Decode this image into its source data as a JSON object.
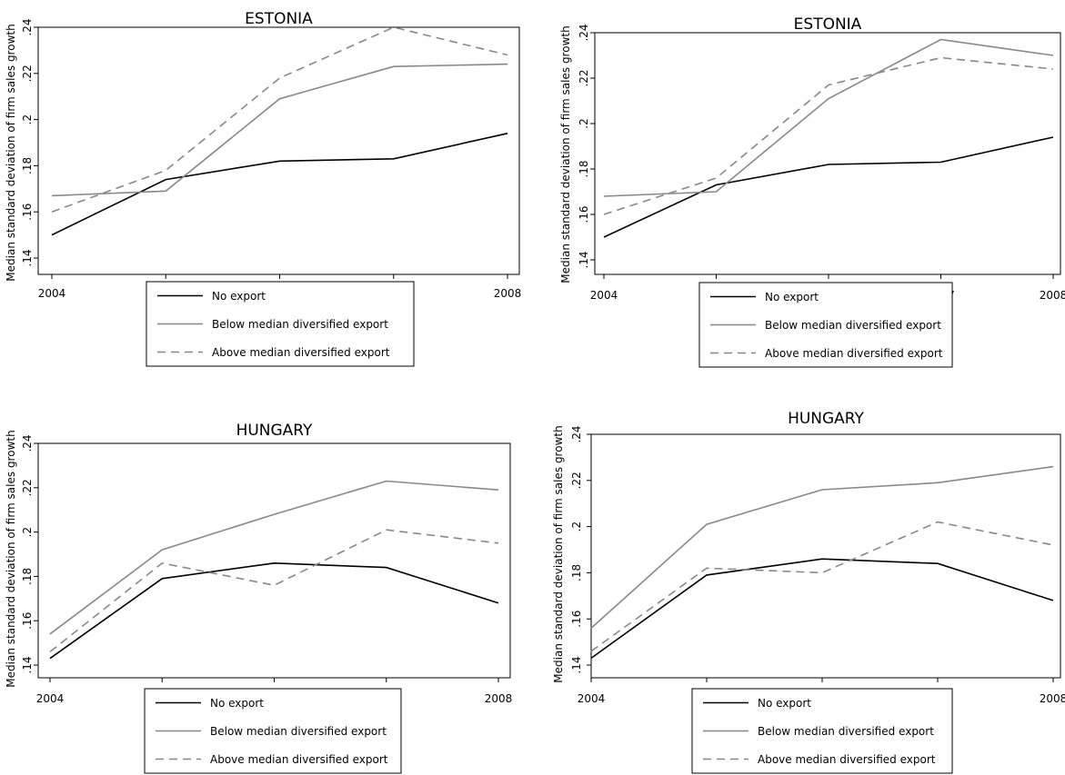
{
  "chart_data": [
    {
      "type": "line",
      "title": "ESTONIA",
      "xlabel": "",
      "ylabel": "Median standard deviation of firm sales growth",
      "x": [
        2004,
        2005,
        2006,
        2007,
        2008
      ],
      "xticks": [
        "2004",
        "2005",
        "2006",
        "2007",
        "2008"
      ],
      "yticks": [
        ".14",
        ".16",
        ".18",
        ".2",
        ".22",
        ".24"
      ],
      "ylim": [
        0.14,
        0.24
      ],
      "grid": false,
      "legend_position": "bottom",
      "series": [
        {
          "name": "No export",
          "values": [
            0.15,
            0.174,
            0.182,
            0.183,
            0.194
          ],
          "color": "#000000",
          "dash": "solid"
        },
        {
          "name": "Below median diversified export",
          "values": [
            0.167,
            0.169,
            0.209,
            0.223,
            0.224
          ],
          "color": "#888888",
          "dash": "solid"
        },
        {
          "name": "Above median diversified export",
          "values": [
            0.16,
            0.178,
            0.218,
            0.24,
            0.228
          ],
          "color": "#888888",
          "dash": "dashed"
        }
      ]
    },
    {
      "type": "line",
      "title": "ESTONIA",
      "xlabel": "",
      "ylabel": "Median standard deviation of firm sales growth",
      "x": [
        2004,
        2005,
        2006,
        2007,
        2008
      ],
      "xticks": [
        "2004",
        "2005",
        "2006",
        "2007",
        "2008"
      ],
      "yticks": [
        ".14",
        ".16",
        ".18",
        ".2",
        ".22",
        ".24"
      ],
      "ylim": [
        0.14,
        0.24
      ],
      "grid": false,
      "legend_position": "bottom",
      "series": [
        {
          "name": "No export",
          "values": [
            0.15,
            0.173,
            0.182,
            0.183,
            0.194
          ],
          "color": "#000000",
          "dash": "solid"
        },
        {
          "name": "Below median diversified export",
          "values": [
            0.168,
            0.17,
            0.211,
            0.237,
            0.23
          ],
          "color": "#888888",
          "dash": "solid"
        },
        {
          "name": "Above median diversified export",
          "values": [
            0.16,
            0.176,
            0.217,
            0.229,
            0.224
          ],
          "color": "#888888",
          "dash": "dashed"
        }
      ]
    },
    {
      "type": "line",
      "title": "HUNGARY",
      "xlabel": "",
      "ylabel": "Median standard deviation of firm sales growth",
      "x": [
        2004,
        2005,
        2006,
        2007,
        2008
      ],
      "xticks": [
        "2004",
        "2005",
        "2006",
        "2007",
        "2008"
      ],
      "yticks": [
        ".14",
        ".16",
        ".18",
        ".2",
        ".22",
        ".24"
      ],
      "ylim": [
        0.14,
        0.24
      ],
      "grid": false,
      "legend_position": "bottom",
      "series": [
        {
          "name": "No export",
          "values": [
            0.143,
            0.179,
            0.186,
            0.184,
            0.168
          ],
          "color": "#000000",
          "dash": "solid"
        },
        {
          "name": "Below median diversified export",
          "values": [
            0.154,
            0.192,
            0.208,
            0.223,
            0.219
          ],
          "color": "#888888",
          "dash": "solid"
        },
        {
          "name": "Above median diversified export",
          "values": [
            0.146,
            0.186,
            0.176,
            0.201,
            0.195
          ],
          "color": "#888888",
          "dash": "dashed"
        }
      ]
    },
    {
      "type": "line",
      "title": "HUNGARY",
      "xlabel": "",
      "ylabel": "Median standard deviation of firm sales growth",
      "x": [
        2004,
        2005,
        2006,
        2007,
        2008
      ],
      "xticks": [
        "2004",
        "2005",
        "2006",
        "2007",
        "2008"
      ],
      "yticks": [
        ".14",
        ".16",
        ".18",
        ".2",
        ".22",
        ".24"
      ],
      "ylim": [
        0.14,
        0.24
      ],
      "grid": false,
      "legend_position": "bottom",
      "series": [
        {
          "name": "No export",
          "values": [
            0.143,
            0.179,
            0.186,
            0.184,
            0.168
          ],
          "color": "#000000",
          "dash": "solid"
        },
        {
          "name": "Below median diversified export",
          "values": [
            0.156,
            0.201,
            0.216,
            0.219,
            0.226
          ],
          "color": "#888888",
          "dash": "solid"
        },
        {
          "name": "Above median diversified export",
          "values": [
            0.146,
            0.182,
            0.18,
            0.202,
            0.192
          ],
          "color": "#888888",
          "dash": "dashed"
        }
      ]
    }
  ]
}
